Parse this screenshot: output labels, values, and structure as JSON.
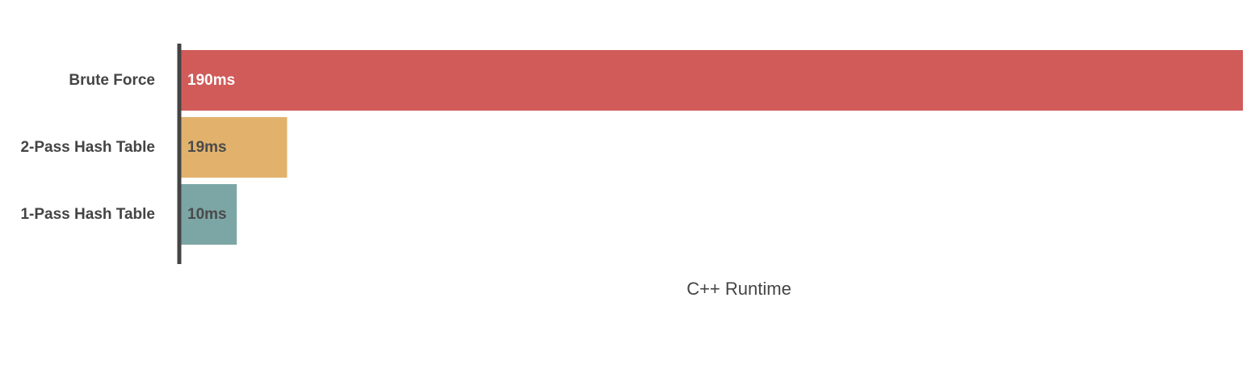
{
  "chart_data": {
    "type": "bar",
    "orientation": "horizontal",
    "title": "",
    "xlabel": "C++ Runtime",
    "ylabel": "",
    "categories": [
      "Brute Force",
      "2-Pass Hash Table",
      "1-Pass Hash Table"
    ],
    "values": [
      190,
      19,
      10
    ],
    "value_labels": [
      "190ms",
      "19ms",
      "10ms"
    ],
    "unit": "ms",
    "xlim": [
      0,
      190
    ],
    "grid": false,
    "legend": "none",
    "colors": [
      "#d05b59",
      "#e2b26c",
      "#7ca6a5"
    ],
    "label_colors": [
      "#ffffff",
      "#4a4a4a",
      "#4a4a4a"
    ],
    "axis_color": "#444444"
  }
}
